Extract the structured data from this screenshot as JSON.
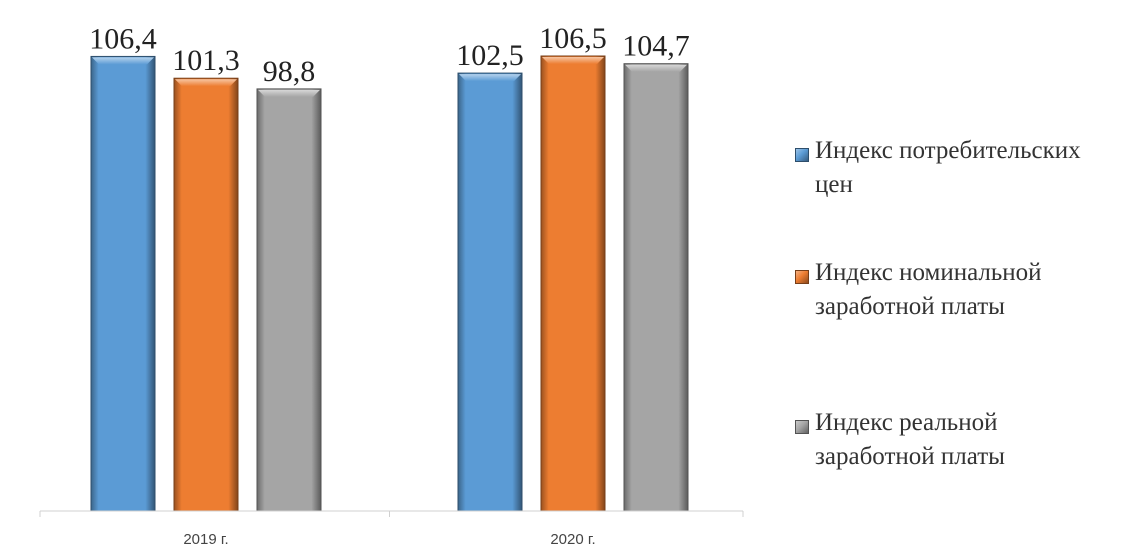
{
  "chart_data": {
    "type": "bar",
    "categories": [
      "2019 г.",
      "2020 г."
    ],
    "series": [
      {
        "name": "Индекс потребительских цен",
        "values": [
          106.4,
          102.5
        ],
        "labels": [
          "106,4",
          "102,5"
        ],
        "color": "#5b9bd5"
      },
      {
        "name": "Индекс номинальной заработной платы",
        "values": [
          101.3,
          106.5
        ],
        "labels": [
          "101,3",
          "106,5"
        ],
        "color": "#ed7d31"
      },
      {
        "name": "Индекс реальной заработной платы",
        "values": [
          98.8,
          104.7
        ],
        "labels": [
          "98,8",
          "104,7"
        ],
        "color": "#a5a5a5"
      }
    ],
    "legend_position": "right",
    "grid": false
  }
}
